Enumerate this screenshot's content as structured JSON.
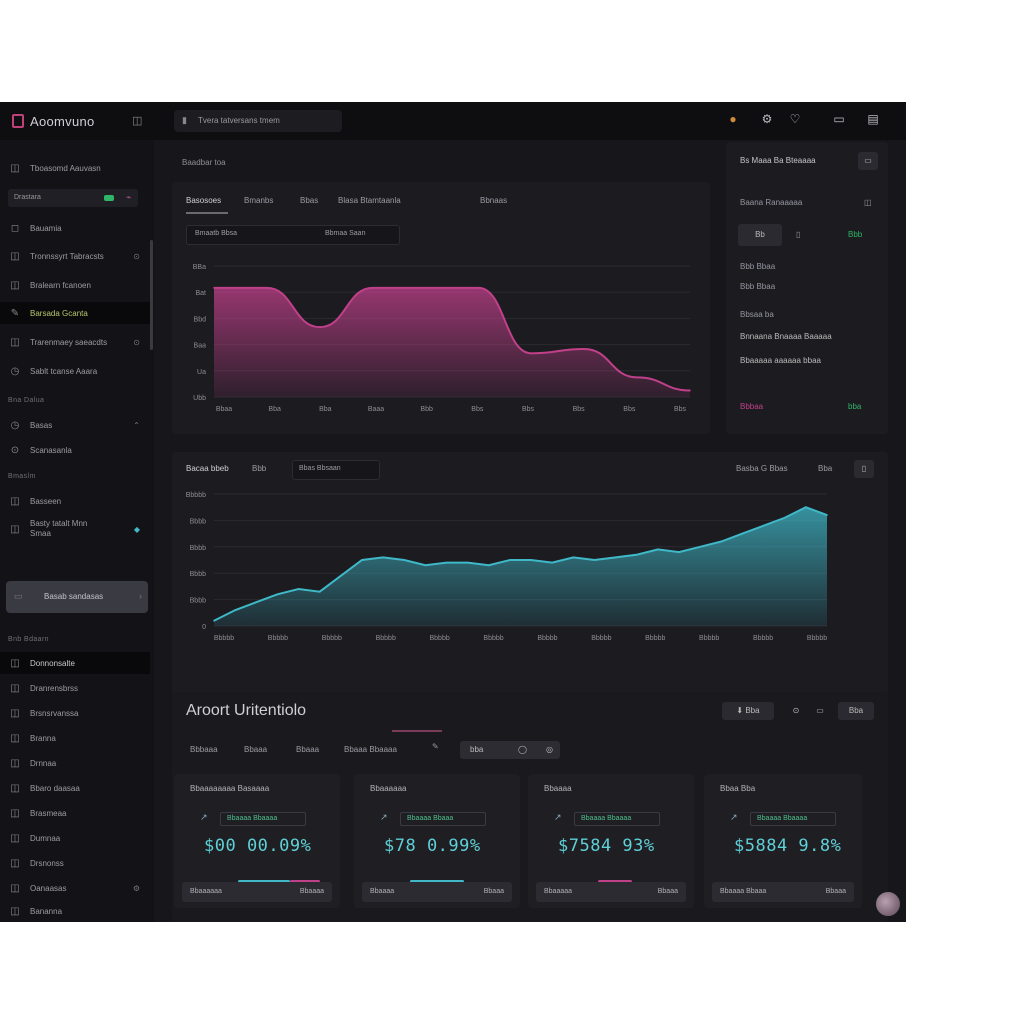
{
  "app": {
    "name": "Aoomvuno",
    "breadcrumb": "Tvera tatversans tmem"
  },
  "topbar": {
    "icons": [
      "bell-icon",
      "settings-icon",
      "heart-icon",
      "layout-icon",
      "user-icon"
    ]
  },
  "sidebar": {
    "items": [
      {
        "label": "Tboasomd Aauvasn",
        "icon": "dashboard-icon"
      },
      {
        "label": "Bauamia",
        "icon": "grid-icon"
      },
      {
        "label": "Tronnssyrt Tabracsts",
        "icon": "list-icon"
      },
      {
        "label": "Bralearn fcanoen",
        "icon": "doc-icon"
      },
      {
        "label": "Barsada Gcanta",
        "icon": "tag-icon",
        "active": true
      },
      {
        "label": "Trarenmaey saeacdts",
        "icon": "folder-icon"
      },
      {
        "label": "Sablt tcanse Aaara",
        "icon": "chart-icon"
      }
    ],
    "pill_label": "Drastara",
    "section1": "Bna Dalua",
    "item_after_section1": "Basas",
    "section1_sub": "Scanasanla",
    "section2": "Bmaslm",
    "item_sub_a": "Basseen",
    "item_sub_b": "Basty tatalt Mnn Smaa",
    "block_label": "Basab sandasas",
    "section3": "Bnb Bdaarn",
    "list": [
      "Donnonsalte",
      "Dranrensbrss",
      "Brsnsrvanssa",
      "Branna",
      "Drnnaa",
      "Bbaro daasaa",
      "Brasmeaa",
      "Dumnaa",
      "Drsnonss",
      "Oanaasas",
      "Bananna",
      "Bnsnsmn"
    ]
  },
  "top_chart": {
    "header": "Baadbar toa",
    "tabs": [
      "Basosoes",
      "Bmanbs",
      "Bbas",
      "Blasa Btamtaanla",
      "Bbnaas"
    ],
    "filter_left": "Bmaatb Bbsa",
    "filter_right": "Bbmaa Saan",
    "y_ticks": [
      "BBa",
      "Bat",
      "Bbd",
      "Baa",
      "Ua",
      "Ubb"
    ],
    "x_ticks": [
      "Bbaa",
      "Bba",
      "Bba",
      "Baaa",
      "Bbb",
      "Bbs",
      "Bbs",
      "Bbs",
      "Bbs",
      "Bbs"
    ]
  },
  "mid_chart": {
    "header": "Bacaa bbeb",
    "tab1": "Bbb",
    "tab2": "Bbas Bbsaan",
    "right_label": "Basba G Bbas",
    "right_btn": "Bba",
    "y_ticks": [
      "Bbbbb",
      "Bbbb",
      "Bbbb",
      "Bbbb",
      "Bbbb",
      "0"
    ],
    "x_ticks": [
      "Bbbbb",
      "Bbbbb",
      "Bbbbb",
      "Bbbbb",
      "Bbbbb",
      "Bbbbb",
      "Bbbbb",
      "Bbbbb",
      "Bbbbb",
      "Bbbbb",
      "Bbbbb",
      "Bbbbb"
    ]
  },
  "right_panel": {
    "title": "Bs Maaa Ba Bteaaaa",
    "row1": "Baana Ranaaaaa",
    "btn1": "Bb",
    "status": "Bbb",
    "line_a": "Bbb Bbaa",
    "line_b": "Bbb Bbaa",
    "line_c": "Bbsaa ba",
    "line_d": "Bnnaana Bnaaaa Baaaaa",
    "line_e": "Bbaaaaa aaaaaa bbaa",
    "footer_a": "Bbbaa",
    "footer_b": "bba"
  },
  "analytics": {
    "title": "Aroort Uritentiolo",
    "tabs": [
      "Bbbaaa",
      "Bbaaa",
      "Bbaaa",
      "Bbaaa Bbaaaa"
    ],
    "chip_label": "Bba",
    "btn_label": "bba",
    "export_label": "Bba"
  },
  "cards": [
    {
      "title": "Bbaaaaaaaa Basaaaa",
      "chip": "Bbaaaa Bbaaaa",
      "value": "$00 00.09%",
      "foot_left": "Bbaaaaaa",
      "foot_right": "Bbaaaa"
    },
    {
      "title": "Bbaaaaaa",
      "chip": "Bbaaaa Bbaaa",
      "value": "$78 0.99%",
      "foot_left": "Bbaaaa",
      "foot_right": "Bbaaa"
    },
    {
      "title": "Bbaaaa",
      "chip": "Bbaaaa Bbaaaa",
      "value": "$7584 93%",
      "foot_left": "Bbaaaaa",
      "foot_right": "Bbaaa"
    },
    {
      "title": "Bbaa Bba",
      "chip": "Bbaaaa Bbaaaa",
      "value": "$5884 9.8%",
      "foot_left": "Bbaaaa Bbaaa",
      "foot_right": "Bbaaa"
    }
  ],
  "colors": {
    "accent_pink": "#c0408a",
    "accent_teal": "#3fb8c8",
    "accent_green": "#2fb567"
  },
  "chart_data": [
    {
      "type": "area",
      "title": "",
      "xlabel": "",
      "ylabel": "",
      "x": [
        0,
        1,
        2,
        3,
        4,
        5,
        6,
        7,
        8,
        9
      ],
      "values": [
        5.0,
        5.0,
        3.2,
        5.0,
        5.0,
        5.0,
        2.0,
        2.2,
        0.9,
        0.3
      ],
      "ylim": [
        0,
        6
      ],
      "series_color": "#c0408a",
      "grid": true
    },
    {
      "type": "area",
      "title": "",
      "xlabel": "",
      "ylabel": "",
      "x": [
        0,
        1,
        2,
        3,
        4,
        5,
        6,
        7,
        8,
        9,
        10,
        11,
        12,
        13,
        14,
        15,
        16,
        17,
        18,
        19,
        20,
        21,
        22,
        23,
        24,
        25,
        26,
        27,
        28,
        29
      ],
      "values": [
        0.2,
        0.6,
        0.9,
        1.2,
        1.4,
        1.3,
        1.9,
        2.5,
        2.6,
        2.5,
        2.3,
        2.4,
        2.4,
        2.3,
        2.5,
        2.5,
        2.4,
        2.6,
        2.5,
        2.6,
        2.7,
        2.9,
        2.8,
        3.0,
        3.2,
        3.5,
        3.8,
        4.1,
        4.5,
        4.2
      ],
      "ylim": [
        0,
        5
      ],
      "series_color": "#3fb8c8",
      "grid": true
    }
  ]
}
